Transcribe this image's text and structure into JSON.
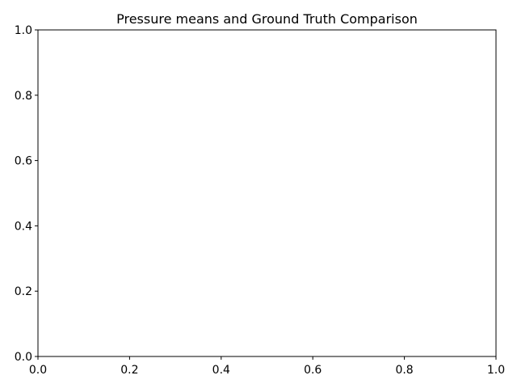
{
  "chart_data": {
    "type": "line",
    "title": "Pressure means and Ground Truth Comparison",
    "xlabel": "",
    "ylabel": "",
    "xlim": [
      0.0,
      1.0
    ],
    "ylim": [
      0.0,
      1.0
    ],
    "x_ticks": [
      0.0,
      0.2,
      0.4,
      0.6,
      0.8,
      1.0
    ],
    "y_ticks": [
      0.0,
      0.2,
      0.4,
      0.6,
      0.8,
      1.0
    ],
    "x_tick_labels": [
      "0.0",
      "0.2",
      "0.4",
      "0.6",
      "0.8",
      "1.0"
    ],
    "y_tick_labels": [
      "0.0",
      "0.2",
      "0.4",
      "0.6",
      "0.8",
      "1.0"
    ],
    "series": [],
    "grid": false,
    "legend": "none"
  }
}
